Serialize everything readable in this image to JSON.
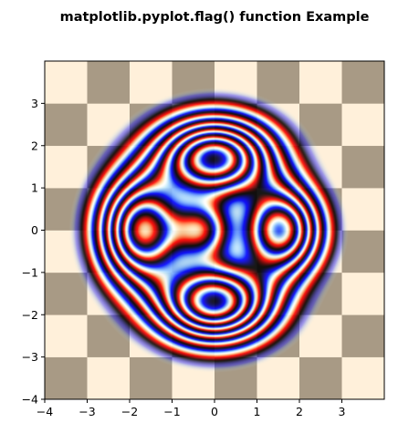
{
  "chart_data": {
    "type": "heatmap",
    "title": "matplotlib.pyplot.flag() function Example",
    "xlabel": "",
    "ylabel": "",
    "xlim": [
      -4,
      4
    ],
    "ylim": [
      -4,
      4
    ],
    "x_ticks": [
      -4,
      -3,
      -2,
      -1,
      0,
      1,
      2,
      3
    ],
    "y_ticks": [
      -4,
      -3,
      -2,
      -1,
      0,
      1,
      2,
      3
    ],
    "x_tick_labels": [
      "−4",
      "−3",
      "−2",
      "−1",
      "0",
      "1",
      "2",
      "3"
    ],
    "y_tick_labels": [
      "−4",
      "−3",
      "−2",
      "−1",
      "0",
      "1",
      "2",
      "3"
    ],
    "grid": false,
    "colormap": "flag",
    "overlay_alpha": 0.9,
    "background": {
      "pattern": "checkerboard",
      "cell_size": 1,
      "colors": [
        "#a89a85",
        "#fff0da"
      ],
      "extent": [
        -4,
        4,
        -4,
        4
      ]
    },
    "colors": {
      "flag_red": "#cf0000",
      "flag_white": "#ffffff",
      "flag_blue": "#0000cf",
      "flag_black": "#000000",
      "checker_dark": "#a89a85",
      "checker_light": "#fff0da"
    }
  }
}
